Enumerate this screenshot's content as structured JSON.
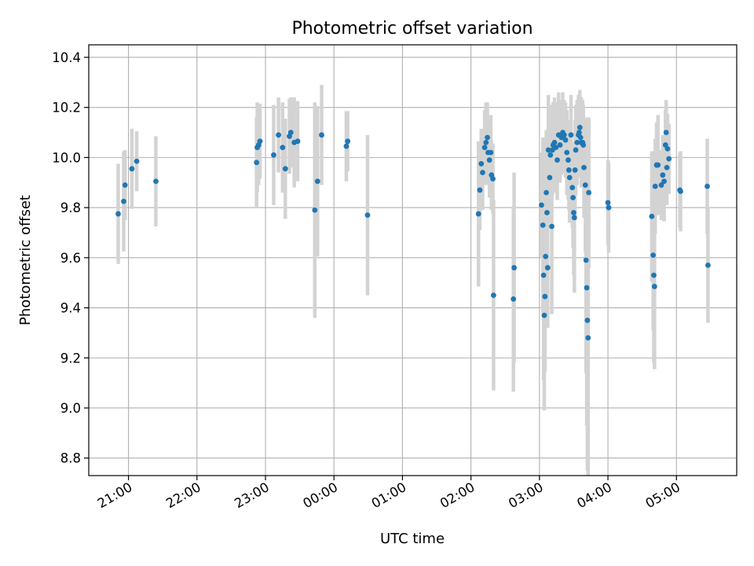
{
  "chart_data": {
    "type": "scatter",
    "title": "Photometric offset variation",
    "xlabel": "UTC time",
    "ylabel": "Photometric offset",
    "x_unit": "hours since 21:00 UTC (values beyond 24 wrap past midnight)",
    "xlim": [
      -0.58,
      8.88
    ],
    "ylim": [
      8.73,
      10.45
    ],
    "x_ticks": [
      {
        "value": 0,
        "label": "21:00"
      },
      {
        "value": 1,
        "label": "22:00"
      },
      {
        "value": 2,
        "label": "23:00"
      },
      {
        "value": 3,
        "label": "00:00"
      },
      {
        "value": 4,
        "label": "01:00"
      },
      {
        "value": 5,
        "label": "02:00"
      },
      {
        "value": 6,
        "label": "03:00"
      },
      {
        "value": 7,
        "label": "04:00"
      },
      {
        "value": 8,
        "label": "05:00"
      }
    ],
    "y_ticks": [
      {
        "value": 8.8,
        "label": "8.8"
      },
      {
        "value": 9.0,
        "label": "9.0"
      },
      {
        "value": 9.2,
        "label": "9.2"
      },
      {
        "value": 9.4,
        "label": "9.4"
      },
      {
        "value": 9.6,
        "label": "9.6"
      },
      {
        "value": 9.8,
        "label": "9.8"
      },
      {
        "value": 10.0,
        "label": "10.0"
      },
      {
        "value": 10.2,
        "label": "10.2"
      },
      {
        "value": 10.4,
        "label": "10.4"
      }
    ],
    "grid": true,
    "colors": {
      "point": "#1f77b4",
      "errorbar": "#d3d3d3",
      "grid": "#b0b0b0"
    },
    "points": [
      [
        -0.15,
        9.775,
        0.2
      ],
      [
        -0.07,
        9.825,
        0.2
      ],
      [
        -0.05,
        9.89,
        0.14
      ],
      [
        0.05,
        9.955,
        0.16
      ],
      [
        0.12,
        9.985,
        0.12
      ],
      [
        0.4,
        9.905,
        0.18
      ],
      [
        1.87,
        9.98,
        0.18
      ],
      [
        1.88,
        10.04,
        0.18
      ],
      [
        1.9,
        10.05,
        0.16
      ],
      [
        1.92,
        10.065,
        0.15
      ],
      [
        2.12,
        10.01,
        0.2
      ],
      [
        2.19,
        10.09,
        0.15
      ],
      [
        2.25,
        10.04,
        0.18
      ],
      [
        2.29,
        9.955,
        0.2
      ],
      [
        2.35,
        10.085,
        0.15
      ],
      [
        2.37,
        10.1,
        0.14
      ],
      [
        2.42,
        10.06,
        0.18
      ],
      [
        2.47,
        10.065,
        0.16
      ],
      [
        2.72,
        9.79,
        0.43
      ],
      [
        2.76,
        9.905,
        0.3
      ],
      [
        2.82,
        10.09,
        0.2
      ],
      [
        3.18,
        10.045,
        0.14
      ],
      [
        3.2,
        10.065,
        0.12
      ],
      [
        3.49,
        9.77,
        0.32
      ],
      [
        5.11,
        9.775,
        0.29
      ],
      [
        5.13,
        9.87,
        0.16
      ],
      [
        5.15,
        9.975,
        0.14
      ],
      [
        5.17,
        9.94,
        0.15
      ],
      [
        5.2,
        10.04,
        0.15
      ],
      [
        5.22,
        10.06,
        0.16
      ],
      [
        5.24,
        10.08,
        0.14
      ],
      [
        5.25,
        10.02,
        0.13
      ],
      [
        5.27,
        9.99,
        0.15
      ],
      [
        5.29,
        10.02,
        0.15
      ],
      [
        5.3,
        9.93,
        0.14
      ],
      [
        5.32,
        9.915,
        0.14
      ],
      [
        5.33,
        9.45,
        0.38
      ],
      [
        5.63,
        9.56,
        0.38
      ],
      [
        5.62,
        9.435,
        0.37
      ],
      [
        6.03,
        9.81,
        0.21
      ],
      [
        6.05,
        9.73,
        0.35
      ],
      [
        6.06,
        9.53,
        0.42
      ],
      [
        6.07,
        9.37,
        0.38
      ],
      [
        6.08,
        9.445,
        0.3
      ],
      [
        6.09,
        9.605,
        0.28
      ],
      [
        6.1,
        9.86,
        0.25
      ],
      [
        6.11,
        9.78,
        0.3
      ],
      [
        6.12,
        9.56,
        0.24
      ],
      [
        6.13,
        10.03,
        0.22
      ],
      [
        6.15,
        9.92,
        0.18
      ],
      [
        6.16,
        10.01,
        0.2
      ],
      [
        6.18,
        9.725,
        0.35
      ],
      [
        6.19,
        10.03,
        0.18
      ],
      [
        6.2,
        10.05,
        0.17
      ],
      [
        6.22,
        10.06,
        0.18
      ],
      [
        6.24,
        10.04,
        0.18
      ],
      [
        6.26,
        9.99,
        0.16
      ],
      [
        6.28,
        10.09,
        0.17
      ],
      [
        6.3,
        10.05,
        0.15
      ],
      [
        6.32,
        10.08,
        0.15
      ],
      [
        6.34,
        10.1,
        0.16
      ],
      [
        6.36,
        10.09,
        0.14
      ],
      [
        6.38,
        10.07,
        0.15
      ],
      [
        6.4,
        10.02,
        0.17
      ],
      [
        6.42,
        9.99,
        0.16
      ],
      [
        6.43,
        9.95,
        0.16
      ],
      [
        6.44,
        9.92,
        0.18
      ],
      [
        6.46,
        10.09,
        0.16
      ],
      [
        6.48,
        9.88,
        0.16
      ],
      [
        6.49,
        9.84,
        0.2
      ],
      [
        6.5,
        9.78,
        0.25
      ],
      [
        6.51,
        9.76,
        0.3
      ],
      [
        6.52,
        9.95,
        0.2
      ],
      [
        6.53,
        10.03,
        0.18
      ],
      [
        6.55,
        10.06,
        0.17
      ],
      [
        6.57,
        10.09,
        0.16
      ],
      [
        6.58,
        10.1,
        0.15
      ],
      [
        6.59,
        10.12,
        0.15
      ],
      [
        6.6,
        10.08,
        0.16
      ],
      [
        6.61,
        10.06,
        0.18
      ],
      [
        6.63,
        10.06,
        0.17
      ],
      [
        6.64,
        10.05,
        0.16
      ],
      [
        6.65,
        9.96,
        0.2
      ],
      [
        6.67,
        9.89,
        0.27
      ],
      [
        6.68,
        9.59,
        0.45
      ],
      [
        6.69,
        9.48,
        0.55
      ],
      [
        6.7,
        9.35,
        0.6
      ],
      [
        6.71,
        9.28,
        0.75
      ],
      [
        6.72,
        9.86,
        0.3
      ],
      [
        7.0,
        9.82,
        0.17
      ],
      [
        7.01,
        9.8,
        0.18
      ],
      [
        7.64,
        9.765,
        0.26
      ],
      [
        7.66,
        9.61,
        0.3
      ],
      [
        7.67,
        9.53,
        0.35
      ],
      [
        7.68,
        9.485,
        0.33
      ],
      [
        7.69,
        9.885,
        0.19
      ],
      [
        7.71,
        9.97,
        0.17
      ],
      [
        7.73,
        9.97,
        0.2
      ],
      [
        7.78,
        9.89,
        0.14
      ],
      [
        7.8,
        9.93,
        0.16
      ],
      [
        7.82,
        9.905,
        0.16
      ],
      [
        7.84,
        10.05,
        0.14
      ],
      [
        7.85,
        10.1,
        0.13
      ],
      [
        7.86,
        9.96,
        0.15
      ],
      [
        7.87,
        10.035,
        0.14
      ],
      [
        7.89,
        9.995,
        0.14
      ],
      [
        8.05,
        9.87,
        0.15
      ],
      [
        8.06,
        9.865,
        0.16
      ],
      [
        8.45,
        9.885,
        0.19
      ],
      [
        8.46,
        9.57,
        0.23
      ]
    ]
  }
}
